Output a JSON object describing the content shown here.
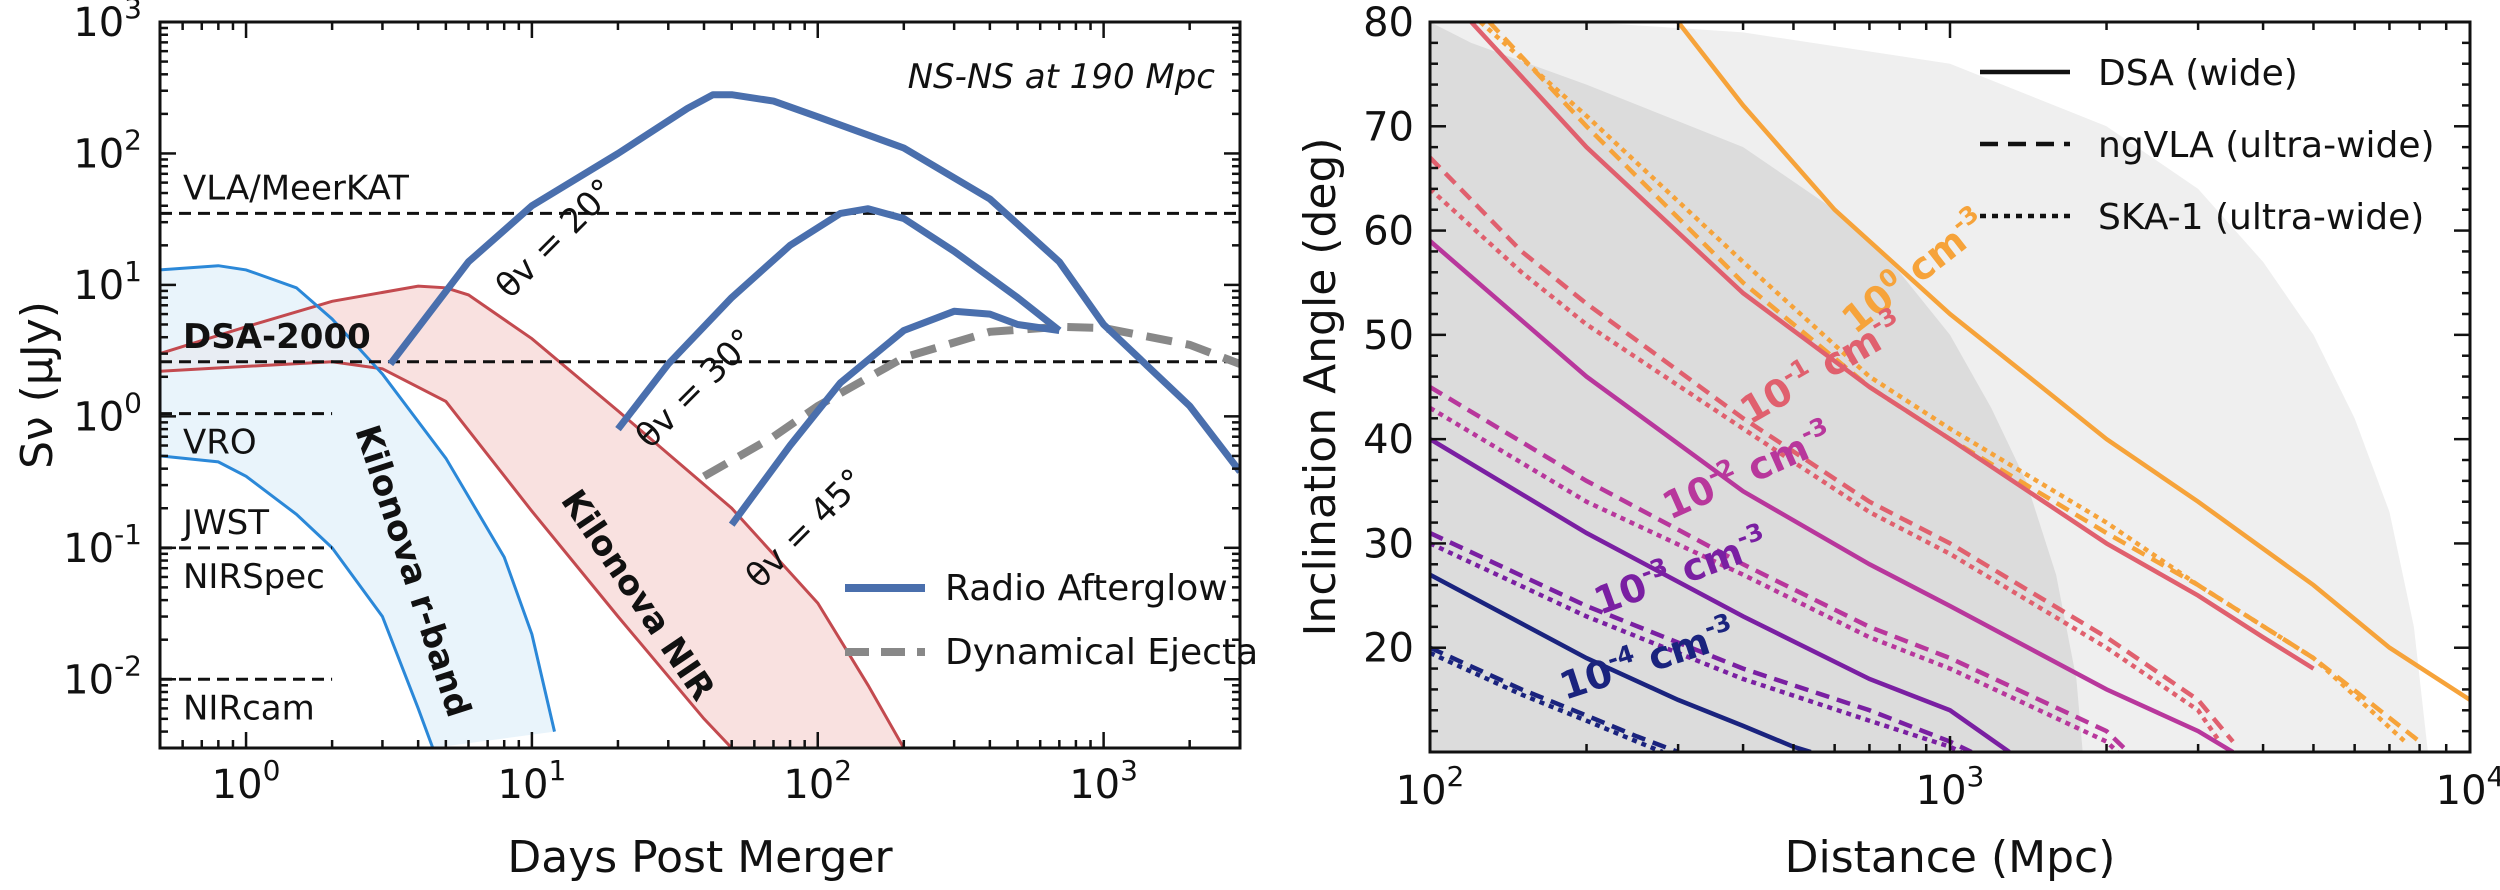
{
  "chart_data": [
    {
      "type": "line",
      "xlabel": "Days Post Merger",
      "ylabel": "Sν (μJy)",
      "xscale": "log",
      "yscale": "log",
      "xlim": [
        0.5,
        3000
      ],
      "ylim": [
        0.003,
        1000
      ],
      "xticks": [
        {
          "value": 1,
          "base": "10",
          "exp": "0"
        },
        {
          "value": 10,
          "base": "10",
          "exp": "1"
        },
        {
          "value": 100,
          "base": "10",
          "exp": "2"
        },
        {
          "value": 1000,
          "base": "10",
          "exp": "3"
        }
      ],
      "yticks": [
        {
          "value": 0.01,
          "base": "10",
          "exp": "-2"
        },
        {
          "value": 0.1,
          "base": "10",
          "exp": "-1"
        },
        {
          "value": 1,
          "base": "10",
          "exp": "0"
        },
        {
          "value": 10,
          "base": "10",
          "exp": "1"
        },
        {
          "value": 100,
          "base": "10",
          "exp": "2"
        },
        {
          "value": 1000,
          "base": "10",
          "exp": "3"
        }
      ],
      "annotation": "NS-NS at 190 Mpc",
      "sensitivity_lines": [
        {
          "label": "VLA/MeerKAT",
          "y": 35,
          "xmin": 0.5,
          "xmax": 3000,
          "bold": false
        },
        {
          "label": "DSA-2000",
          "y": 2.6,
          "xmin": 0.5,
          "xmax": 3000,
          "bold": true
        },
        {
          "label": "VRO",
          "y": 1.05,
          "xmin": 0.5,
          "xmax": 2,
          "bold": false
        },
        {
          "label": "JWST\nNIRSpec",
          "y": 0.1,
          "xmin": 0.5,
          "xmax": 2,
          "bold": false
        },
        {
          "label": "NIRcam",
          "y": 0.01,
          "xmin": 0.5,
          "xmax": 2,
          "bold": false
        }
      ],
      "series": [
        {
          "name": "Radio Afterglow",
          "curves": [
            {
              "label": "θv = 20°",
              "x": [
                3.2,
                6,
                10,
                20,
                35,
                43,
                50,
                70,
                100,
                200,
                400,
                700,
                1000,
                2000,
                3000
              ],
              "y": [
                2.5,
                15,
                40,
                100,
                220,
                280,
                280,
                250,
                190,
                110,
                45,
                15,
                5,
                1.2,
                0.38
              ]
            },
            {
              "label": "θv = 30°",
              "x": [
                20,
                30,
                50,
                80,
                120,
                150,
                200,
                300,
                500,
                700
              ],
              "y": [
                0.8,
                2.5,
                8,
                20,
                35,
                38,
                32,
                18,
                8,
                4.5
              ]
            },
            {
              "label": "θv = 45°",
              "x": [
                50,
                80,
                120,
                200,
                300,
                400,
                500,
                700
              ],
              "y": [
                0.15,
                0.6,
                1.8,
                4.5,
                6.3,
                6.0,
                5.0,
                4.5
              ]
            }
          ]
        },
        {
          "name": "Dynamical Ejecta",
          "x": [
            40,
            70,
            100,
            200,
            400,
            700,
            1000,
            2000,
            3000
          ],
          "y": [
            0.35,
            0.7,
            1.2,
            2.8,
            4.4,
            4.8,
            4.7,
            3.5,
            2.5
          ]
        }
      ],
      "bands": [
        {
          "label": "Kilonova r-band",
          "upper": {
            "x": [
              0.5,
              0.8,
              1,
              1.5,
              2,
              3,
              5,
              8,
              10,
              12
            ],
            "y": [
              13,
              14,
              13,
              9.5,
              5.5,
              2.1,
              0.48,
              0.085,
              0.022,
              0.004
            ]
          },
          "lower": {
            "x": [
              0.5,
              0.8,
              1,
              1.5,
              2,
              3,
              4,
              4.5
            ],
            "y": [
              0.5,
              0.45,
              0.35,
              0.18,
              0.1,
              0.03,
              0.006,
              0.003
            ]
          }
        },
        {
          "label": "Kilonova NIR",
          "upper": {
            "x": [
              0.5,
              1,
              2,
              4,
              5,
              6,
              10,
              20,
              50,
              100,
              150,
              200
            ],
            "y": [
              3,
              4.8,
              7.5,
              9.8,
              9.5,
              8.4,
              3.9,
              1.1,
              0.2,
              0.038,
              0.009,
              0.003
            ]
          },
          "lower": {
            "x": [
              0.5,
              1,
              2,
              3,
              5,
              10,
              20,
              40,
              50,
              60
            ],
            "y": [
              2.2,
              2.4,
              2.6,
              2.3,
              1.3,
              0.19,
              0.03,
              0.005,
              0.003,
              0.003
            ]
          }
        }
      ],
      "colors": {
        "afterglow": "#4a6fad",
        "ejecta": "#888888",
        "rband": "#2b88d8",
        "rband_fill": "#e2f0f9",
        "nir": "#c34a4f",
        "nir_fill": "#f8dcdb"
      }
    },
    {
      "type": "line",
      "xlabel": "Distance (Mpc)",
      "ylabel": "Inclination Angle (deg)",
      "xscale": "log",
      "xlim": [
        100,
        10000
      ],
      "ylim": [
        10,
        80
      ],
      "xticks": [
        {
          "value": 100,
          "base": "10",
          "exp": "2"
        },
        {
          "value": 1000,
          "base": "10",
          "exp": "3"
        },
        {
          "value": 10000,
          "base": "10",
          "exp": "4"
        }
      ],
      "yticks": [
        20,
        30,
        40,
        50,
        60,
        70,
        80
      ],
      "legend": [
        {
          "label": "DSA (wide)",
          "style": "solid"
        },
        {
          "label": "ngVLA (ultra-wide)",
          "style": "dashed"
        },
        {
          "label": "SKA-1 (ultra-wide)",
          "style": "dotted"
        }
      ],
      "shaded_regions": [
        {
          "color": "#dcdcdc",
          "boundary": {
            "x": [
              100,
              120,
              200,
              400,
              600,
              800,
              1000,
              1200,
              1400,
              1600,
              1750,
              1800
            ],
            "y": [
              80,
              78,
              74,
              68,
              62,
              56,
              50,
              43,
              36,
              27,
              17,
              10
            ]
          }
        },
        {
          "color": "#efefef",
          "boundary": {
            "x": [
              200,
              400,
              1000,
              2000,
              3000,
              4000,
              5000,
              6000,
              7000,
              7800,
              8300
            ],
            "y": [
              80,
              79,
              76,
              70,
              64,
              57,
              50,
              42,
              33,
              22,
              10
            ]
          }
        }
      ],
      "density_curves": [
        {
          "label_base": "10",
          "label_exp": "0",
          "label_unit": " cm",
          "label_unit_exp": "-3",
          "color": "#f6a33a",
          "solid": {
            "x": [
              300,
              400,
              600,
              1000,
              1500,
              2000,
              3000,
              5000,
              7000,
              10000
            ],
            "y": [
              80,
              72,
              62,
              52,
              45,
              40,
              34,
              26,
              20,
              15
            ]
          },
          "dashed": {
            "x": [
              130,
              200,
              400,
              700,
              1000,
              2000,
              3000,
              5000,
              8000
            ],
            "y": [
              80,
              70,
              55,
              45,
              40,
              31,
              26,
              19,
              11
            ]
          },
          "dotted": {
            "x": [
              125,
              200,
              400,
              700,
              1000,
              2000,
              3000,
              5000,
              7500
            ],
            "y": [
              80,
              71,
              57,
              46,
              41,
              32,
              26,
              19,
              11
            ]
          }
        },
        {
          "label_base": "10",
          "label_exp": "-1",
          "label_unit": " cm",
          "label_unit_exp": "-3",
          "color": "#e0606e",
          "solid": {
            "x": [
              120,
              200,
              400,
              700,
              1000,
              2000,
              3000,
              4000,
              5000
            ],
            "y": [
              80,
              68,
              54,
              45,
              40,
              30,
              25,
              21,
              18
            ]
          },
          "dashed": {
            "x": [
              100,
              150,
              200,
              400,
              700,
              1000,
              2000,
              3000,
              3500
            ],
            "y": [
              67,
              58,
              53,
              42,
              34,
              30,
              21,
              15,
              11
            ]
          },
          "dotted": {
            "x": [
              100,
              150,
              200,
              400,
              700,
              1000,
              2000,
              3000,
              3300
            ],
            "y": [
              64,
              56,
              51,
              41,
              33,
              29,
              20,
              14,
              11
            ]
          }
        },
        {
          "label_base": "10",
          "label_exp": "-2",
          "label_unit": " cm",
          "label_unit_exp": "-3",
          "color": "#b8379c",
          "solid": {
            "x": [
              100,
              200,
              400,
              700,
              1000,
              2000,
              3000,
              3500
            ],
            "y": [
              59,
              46,
              35,
              28,
              24,
              16,
              12,
              10
            ]
          },
          "dashed": {
            "x": [
              100,
              200,
              400,
              700,
              1000,
              2000,
              2200
            ],
            "y": [
              45,
              36,
              28,
              22,
              19,
              12,
              10
            ]
          },
          "dotted": {
            "x": [
              100,
              200,
              400,
              700,
              1000,
              2000,
              2100
            ],
            "y": [
              43,
              34,
              27,
              21,
              18,
              11,
              10
            ]
          }
        },
        {
          "label_base": "10",
          "label_exp": "-3",
          "label_unit": " cm",
          "label_unit_exp": "-3",
          "color": "#7a1fa2",
          "solid": {
            "x": [
              100,
              200,
              400,
              700,
              1000,
              1300
            ],
            "y": [
              40,
              31,
              23,
              17,
              14,
              10
            ]
          },
          "dashed": {
            "x": [
              100,
              200,
              400,
              700,
              1000,
              1100
            ],
            "y": [
              31,
              24,
              18,
              14,
              11,
              10
            ]
          },
          "dotted": {
            "x": [
              100,
              200,
              400,
              700,
              1000,
              1050
            ],
            "y": [
              30,
              23,
              17,
              13,
              10.5,
              10
            ]
          }
        },
        {
          "label_base": "10",
          "label_exp": "-4",
          "label_unit": " cm",
          "label_unit_exp": "-3",
          "color": "#1a237e",
          "solid": {
            "x": [
              100,
              200,
              300,
              400,
              500,
              540
            ],
            "y": [
              27,
              19,
              15,
              12.5,
              10.5,
              10
            ]
          },
          "dashed": {
            "x": [
              100,
              150,
              200,
              250,
              300
            ],
            "y": [
              20,
              16,
              13.5,
              11.5,
              10
            ]
          },
          "dotted": {
            "x": [
              100,
              150,
              200,
              250,
              280
            ],
            "y": [
              19.5,
              15.5,
              13,
              11,
              10
            ]
          }
        }
      ]
    }
  ]
}
